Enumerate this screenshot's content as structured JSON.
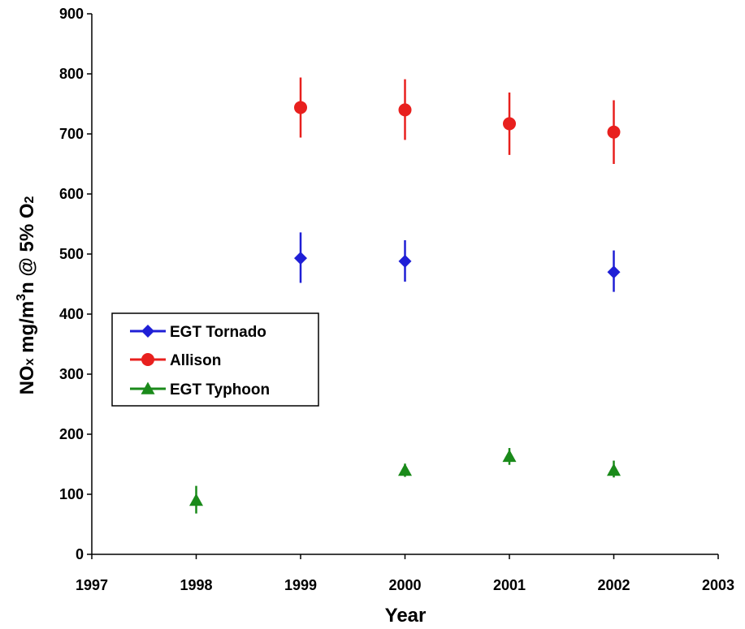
{
  "chart_data": {
    "type": "scatter",
    "title": "",
    "xlabel": "Year",
    "ylabel": {
      "parts": [
        "NO",
        "x",
        " mg/m",
        "3",
        "n @ 5% O",
        "2"
      ],
      "full": "NOx mg/m3n @ 5% O2"
    },
    "xlim": [
      1997,
      2003
    ],
    "ylim": [
      0,
      900
    ],
    "xticks": [
      1997,
      1998,
      1999,
      2000,
      2001,
      2002,
      2003
    ],
    "yticks": [
      0,
      100,
      200,
      300,
      400,
      500,
      600,
      700,
      800,
      900
    ],
    "grid": false,
    "legend_position": "left-middle",
    "series": [
      {
        "name": "EGT Tornado",
        "marker": "diamond",
        "color": "#1f1fd6",
        "points": [
          {
            "x": 1999,
            "y": 493,
            "lo": 452,
            "hi": 536
          },
          {
            "x": 2000,
            "y": 488,
            "lo": 454,
            "hi": 523
          },
          {
            "x": 2002,
            "y": 470,
            "lo": 437,
            "hi": 506
          }
        ]
      },
      {
        "name": "Allison",
        "marker": "circle",
        "color": "#e8201e",
        "points": [
          {
            "x": 1999,
            "y": 744,
            "lo": 694,
            "hi": 794
          },
          {
            "x": 2000,
            "y": 740,
            "lo": 690,
            "hi": 791
          },
          {
            "x": 2001,
            "y": 717,
            "lo": 665,
            "hi": 769
          },
          {
            "x": 2002,
            "y": 703,
            "lo": 650,
            "hi": 756
          }
        ]
      },
      {
        "name": "EGT Typhoon",
        "marker": "triangle",
        "color": "#1a8a1a",
        "points": [
          {
            "x": 1998,
            "y": 90,
            "lo": 68,
            "hi": 114
          },
          {
            "x": 2000,
            "y": 140,
            "lo": 129,
            "hi": 151
          },
          {
            "x": 2001,
            "y": 163,
            "lo": 149,
            "hi": 177
          },
          {
            "x": 2002,
            "y": 140,
            "lo": 128,
            "hi": 156
          }
        ]
      }
    ]
  }
}
